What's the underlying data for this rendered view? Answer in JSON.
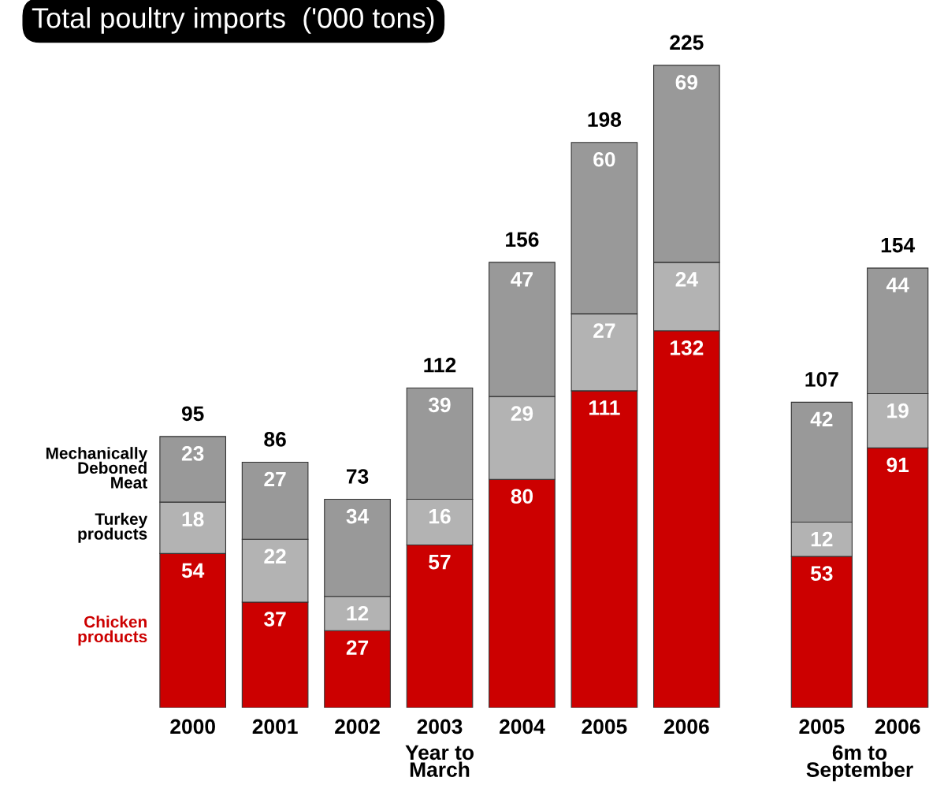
{
  "chart_data": [
    {
      "type": "bar",
      "title": "Total poultry imports  ('000 tons)",
      "xlabel": "Year to\nMarch",
      "stacked": true,
      "data_labels": true,
      "tick_labels": "x",
      "categories": [
        "2000",
        "2001",
        "2002",
        "2003",
        "2004",
        "2005",
        "2006"
      ],
      "series": [
        {
          "name": "Chicken products",
          "color": "#cc0000",
          "values": [
            54,
            37,
            27,
            57,
            80,
            111,
            132
          ]
        },
        {
          "name": "Turkey products",
          "color": "#b3b3b3",
          "values": [
            18,
            22,
            12,
            16,
            29,
            27,
            24
          ]
        },
        {
          "name": "Mechanically Deboned Meat",
          "color": "#999999",
          "values": [
            23,
            27,
            34,
            39,
            47,
            60,
            69
          ]
        }
      ],
      "totals": [
        "95",
        "86",
        "73",
        "112",
        "156",
        "198",
        "225"
      ]
    },
    {
      "type": "bar",
      "xlabel": "6m to\nSeptember",
      "stacked": true,
      "data_labels": true,
      "tick_labels": "x",
      "categories": [
        "2005",
        "2006"
      ],
      "series": [
        {
          "color": "#cc0000",
          "values": [
            53,
            91
          ]
        },
        {
          "color": "#b3b3b3",
          "values": [
            12,
            19
          ]
        },
        {
          "color": "#999999",
          "values": [
            42,
            44
          ]
        }
      ],
      "totals": [
        "107",
        "154"
      ]
    }
  ]
}
